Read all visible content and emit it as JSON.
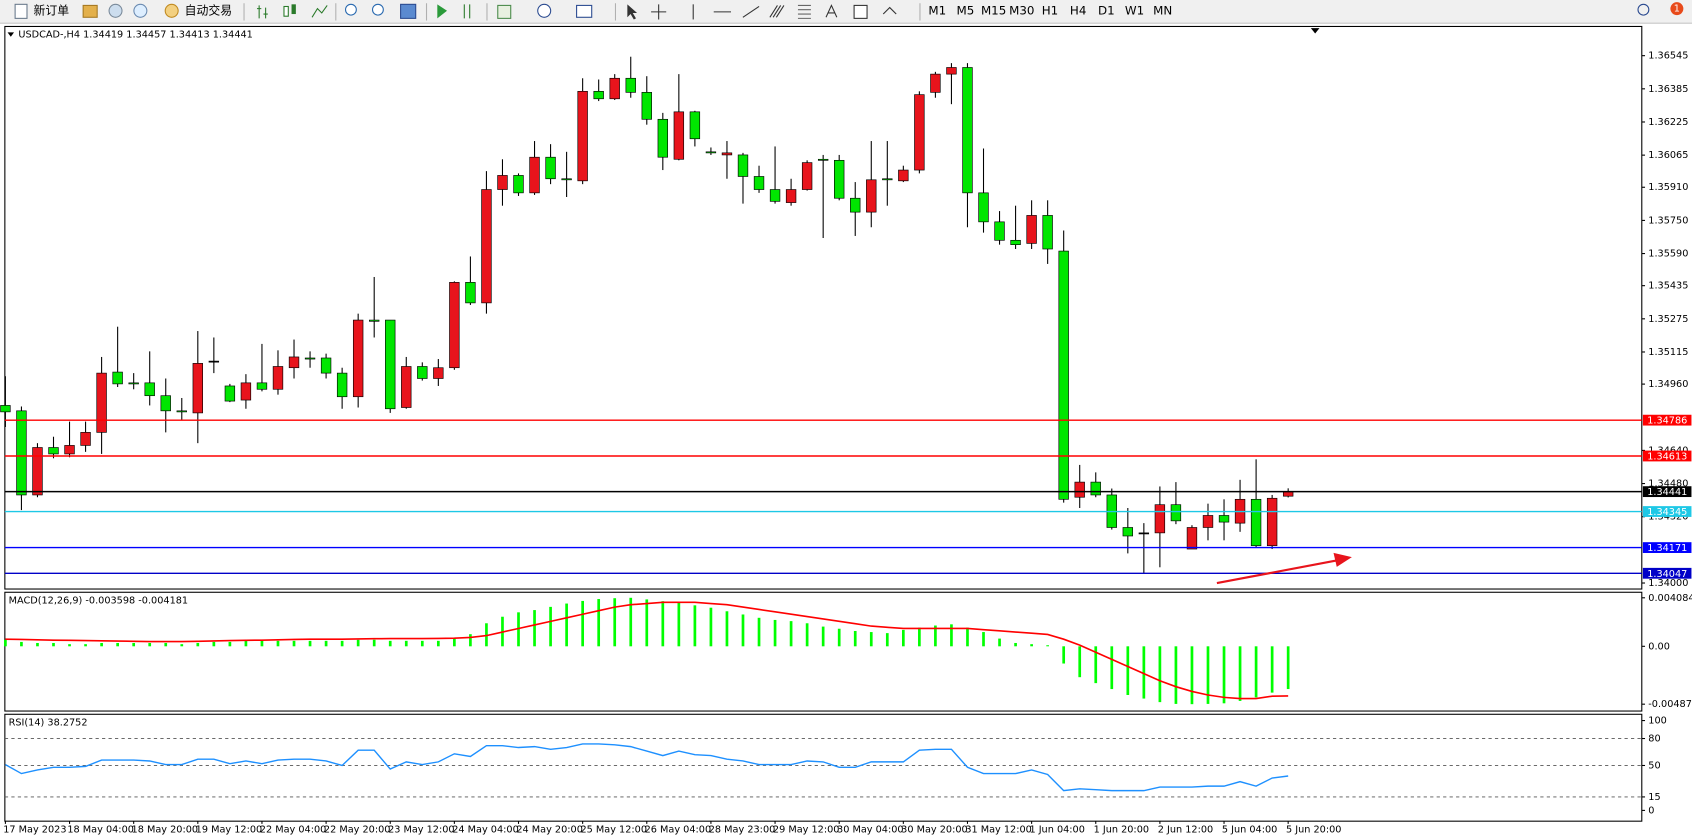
{
  "toolbar": {
    "new_order": "新订单",
    "auto_trading": "自动交易",
    "timeframes": [
      "M1",
      "M5",
      "M15",
      "M30",
      "H1",
      "H4",
      "D1",
      "W1",
      "MN"
    ],
    "notifications": "1"
  },
  "chart_data": [
    {
      "type": "candlestick",
      "title": "USDCAD-,H4  1.34419 1.34457 1.34413 1.34441",
      "up_color": "#e8141c",
      "down_color": "#00e600",
      "x": [
        "17 May 2023",
        null,
        null,
        null,
        "18 May 04:00",
        null,
        null,
        null,
        "18 May 20:00",
        null,
        null,
        null,
        "19 May 12:00",
        null,
        null,
        null,
        "22 May 04:00",
        null,
        null,
        null,
        "22 May 20:00",
        null,
        null,
        null,
        "23 May 12:00",
        null,
        null,
        null,
        "24 May 04:00",
        null,
        null,
        null,
        "24 May 20:00",
        null,
        null,
        null,
        "25 May 12:00",
        null,
        null,
        null,
        "26 May 04:00",
        null,
        null,
        null,
        "28 May 23:00",
        null,
        null,
        null,
        "29 May 12:00",
        null,
        null,
        null,
        "30 May 04:00",
        null,
        null,
        null,
        "30 May 20:00",
        null,
        null,
        null,
        "31 May 12:00",
        null,
        null,
        null,
        "1 Jun 04:00",
        null,
        null,
        null,
        "1 Jun 20:00",
        null,
        null,
        null,
        "2 Jun 12:00",
        null,
        null,
        null,
        "5 Jun 04:00",
        null,
        null,
        null,
        "5 Jun 20:00"
      ],
      "open": [
        1.34857,
        1.34831,
        1.34425,
        1.34654,
        1.34623,
        1.34664,
        1.34727,
        1.35018,
        1.34966,
        1.34966,
        1.34904,
        1.34831,
        1.34821,
        1.35071,
        1.34951,
        1.34883,
        1.34966,
        1.34935,
        1.35039,
        1.35086,
        1.35086,
        1.35013,
        1.34899,
        1.35269,
        1.35269,
        1.34847,
        1.35045,
        1.34987,
        1.35039,
        1.35451,
        1.35352,
        1.35899,
        1.35967,
        1.35883,
        1.36055,
        1.35951,
        1.35941,
        1.36373,
        1.36337,
        1.36436,
        1.36368,
        1.36238,
        1.36045,
        1.36274,
        1.36081,
        1.36066,
        1.36066,
        1.35962,
        1.35899,
        1.35836,
        1.35899,
        1.36045,
        1.3604,
        1.35857,
        1.3579,
        1.35951,
        1.35941,
        1.35993,
        1.36368,
        1.36456,
        1.36488,
        1.35883,
        1.35743,
        1.35654,
        1.35639,
        1.35774,
        1.35602,
        1.34414,
        1.34487,
        1.34425,
        1.34268,
        1.34242,
        1.34242,
        1.34378,
        1.34164,
        1.34268,
        1.34326,
        1.34289,
        1.34404,
        1.3418,
        1.34419
      ],
      "high": [
        1.34998,
        1.34852,
        1.34675,
        1.34706,
        1.34779,
        1.34779,
        1.35091,
        1.35237,
        1.35013,
        1.35118,
        1.34987,
        1.34893,
        1.35216,
        1.35185,
        1.34961,
        1.35008,
        1.35154,
        1.35123,
        1.35175,
        1.35118,
        1.35107,
        1.35039,
        1.353,
        1.35477,
        1.35269,
        1.35091,
        1.35065,
        1.35081,
        1.35456,
        1.35576,
        1.35988,
        1.36045,
        1.35977,
        1.36133,
        1.36118,
        1.36081,
        1.36436,
        1.3643,
        1.36456,
        1.3654,
        1.36446,
        1.36269,
        1.36456,
        1.36279,
        1.36102,
        1.36133,
        1.36076,
        1.36014,
        1.36107,
        1.35951,
        1.3604,
        1.36066,
        1.36066,
        1.35935,
        1.36133,
        1.36133,
        1.36014,
        1.36373,
        1.36467,
        1.36509,
        1.36509,
        1.36097,
        1.35795,
        1.35821,
        1.35847,
        1.35847,
        1.35701,
        1.3457,
        1.34534,
        1.34456,
        1.34362,
        1.34289,
        1.34466,
        1.34487,
        1.34279,
        1.34383,
        1.34404,
        1.34498,
        1.34597,
        1.34425,
        1.34457
      ],
      "low": [
        1.34753,
        1.34352,
        1.34414,
        1.34602,
        1.34607,
        1.34633,
        1.34623,
        1.34946,
        1.34935,
        1.34857,
        1.34727,
        1.34789,
        1.34675,
        1.35013,
        1.34873,
        1.34841,
        1.34925,
        1.34909,
        1.34987,
        1.35039,
        1.34987,
        1.34841,
        1.34847,
        1.35185,
        1.34821,
        1.34841,
        1.34977,
        1.34951,
        1.35029,
        1.35342,
        1.353,
        1.35821,
        1.35868,
        1.35873,
        1.35925,
        1.35863,
        1.35925,
        1.36326,
        1.36331,
        1.36342,
        1.36212,
        1.35993,
        1.3604,
        1.36107,
        1.36066,
        1.35951,
        1.35831,
        1.35883,
        1.35831,
        1.35821,
        1.35894,
        1.35665,
        1.35847,
        1.35675,
        1.35717,
        1.35821,
        1.35935,
        1.35977,
        1.36342,
        1.36311,
        1.35717,
        1.35691,
        1.35633,
        1.35612,
        1.35612,
        1.3554,
        1.34388,
        1.34362,
        1.34414,
        1.34258,
        1.34143,
        1.34044,
        1.34076,
        1.34284,
        1.34164,
        1.34206,
        1.34206,
        1.34247,
        1.34169,
        1.34164,
        1.34413
      ],
      "close": [
        1.34826,
        1.34425,
        1.34654,
        1.34623,
        1.34664,
        1.34727,
        1.35013,
        1.34961,
        1.34961,
        1.34904,
        1.34831,
        1.34826,
        1.3506,
        1.35071,
        1.34878,
        1.34966,
        1.34935,
        1.35045,
        1.35091,
        1.35081,
        1.35013,
        1.34899,
        1.35269,
        1.35263,
        1.34841,
        1.35045,
        1.34987,
        1.35039,
        1.35451,
        1.35352,
        1.35899,
        1.35967,
        1.35883,
        1.36055,
        1.35951,
        1.35946,
        1.36373,
        1.36337,
        1.36436,
        1.36368,
        1.36238,
        1.36055,
        1.36274,
        1.36144,
        1.36076,
        1.36076,
        1.35962,
        1.35899,
        1.35842,
        1.35899,
        1.36029,
        1.3604,
        1.35857,
        1.3579,
        1.35946,
        1.35946,
        1.35993,
        1.36357,
        1.36456,
        1.36488,
        1.35883,
        1.35743,
        1.35654,
        1.35633,
        1.35774,
        1.35612,
        1.34404,
        1.34487,
        1.34425,
        1.34268,
        1.34227,
        1.34242,
        1.34378,
        1.343,
        1.34268,
        1.34326,
        1.34294,
        1.34404,
        1.3418,
        1.34409,
        1.34441
      ],
      "ylim": [
        1.33971,
        1.36686
      ],
      "yticks": [
        1.36545,
        1.36385,
        1.36225,
        1.36065,
        {
          "value": 1.3591,
          "label": "1.35910"
        },
        {
          "value": 1.3575,
          "label": "1.35750"
        },
        {
          "value": 1.3559,
          "label": "1.35590"
        },
        1.35435,
        1.35275,
        1.35115,
        {
          "value": 1.3496,
          "label": "1.34960"
        },
        {
          "value": 1.3464,
          "label": "1.34640"
        },
        {
          "value": 1.3448,
          "label": "1.34480"
        },
        {
          "value": 1.3432,
          "label": "1.34320"
        },
        {
          "value": 1.34,
          "label": "1.34000"
        }
      ],
      "hlines": [
        {
          "value": 1.34786,
          "color": "#ff0000"
        },
        {
          "value": 1.34613,
          "color": "#ff0000"
        },
        {
          "value": 1.34441,
          "color": "#000000"
        },
        {
          "value": 1.34345,
          "color": "#1ec8e6"
        },
        {
          "value": 1.34171,
          "color": "#0000ff"
        },
        {
          "value": 1.34047,
          "color": "#0000c8"
        }
      ]
    },
    {
      "type": "macd",
      "title": "MACD(12,26,9) -0.003598 -0.004181",
      "color": "#00ff00",
      "signal_color": "#ff0000",
      "values": [
        0.00055,
        0.00037,
        0.00028,
        0.00028,
        0.00018,
        0.00018,
        0.00028,
        0.00028,
        0.00028,
        0.00028,
        0.00028,
        0.00018,
        0.00028,
        0.00037,
        0.00037,
        0.00046,
        0.00046,
        0.00046,
        0.00046,
        0.00046,
        0.00046,
        0.00046,
        0.00055,
        0.00055,
        0.00046,
        0.00046,
        0.00046,
        0.00046,
        0.00065,
        0.00102,
        0.00194,
        0.00249,
        0.00286,
        0.00305,
        0.00332,
        0.0036,
        0.00382,
        0.00398,
        0.00405,
        0.004084,
        0.00395,
        0.0038,
        0.00365,
        0.00345,
        0.00325,
        0.00295,
        0.00268,
        0.0024,
        0.00222,
        0.00212,
        0.00194,
        0.00166,
        0.00148,
        0.00129,
        0.0012,
        0.00111,
        0.00138,
        0.00157,
        0.00175,
        0.00185,
        0.00157,
        0.0012,
        0.00065,
        0.00028,
        0.00018,
        9e-05,
        -0.00145,
        -0.0026,
        -0.0031,
        -0.0036,
        -0.0041,
        -0.0044,
        -0.0047,
        -0.00485,
        -0.004872,
        -0.00485,
        -0.0048,
        -0.0046,
        -0.0043,
        -0.0039,
        -0.003598
      ],
      "signal": [
        0.0006,
        0.00058,
        0.00055,
        0.00052,
        0.0005,
        0.00048,
        0.00046,
        0.00044,
        0.00042,
        0.0004,
        0.0004,
        0.0004,
        0.00042,
        0.00045,
        0.00048,
        0.0005,
        0.00052,
        0.00055,
        0.00058,
        0.0006,
        0.0006,
        0.0006,
        0.00062,
        0.00064,
        0.00065,
        0.00065,
        0.00065,
        0.00066,
        0.00068,
        0.00075,
        0.0009,
        0.0012,
        0.0015,
        0.0018,
        0.0021,
        0.0024,
        0.0027,
        0.003,
        0.0033,
        0.0035,
        0.0036,
        0.0037,
        0.0037,
        0.0037,
        0.0036,
        0.0035,
        0.0033,
        0.0031,
        0.0029,
        0.0027,
        0.0025,
        0.0023,
        0.0021,
        0.0019,
        0.0017,
        0.0016,
        0.0015,
        0.0015,
        0.0015,
        0.0015,
        0.0015,
        0.0014,
        0.0013,
        0.0012,
        0.0011,
        0.001,
        0.0006,
        0.0001,
        -0.0005,
        -0.0011,
        -0.0017,
        -0.0023,
        -0.0029,
        -0.0034,
        -0.0038,
        -0.0041,
        -0.0043,
        -0.0044,
        -0.0044,
        -0.0042,
        -0.004181
      ],
      "ylim": [
        -0.00545,
        0.00455
      ],
      "yticks": [
        0.004084,
        {
          "value": 0,
          "label": "0.00"
        },
        -0.004872
      ]
    },
    {
      "type": "rsi",
      "title": "RSI(14) 38.2752",
      "color": "#1e90ff",
      "values": [
        51,
        41,
        45,
        48,
        48,
        49,
        56,
        56,
        56,
        55,
        51,
        51,
        57,
        57,
        52,
        55,
        52,
        56,
        57,
        57,
        55,
        50,
        67,
        67,
        46,
        54,
        51,
        54,
        63,
        60,
        72,
        72,
        70,
        71,
        68,
        70,
        74,
        74,
        73,
        71,
        66,
        61,
        66,
        62,
        61,
        57,
        55,
        51,
        51,
        51,
        55,
        54,
        48,
        48,
        54,
        54,
        54,
        67,
        68,
        68,
        48,
        41,
        41,
        41,
        45,
        40,
        22,
        24,
        23,
        22,
        22,
        22,
        26,
        26,
        26,
        27,
        27,
        32,
        27,
        36,
        38.2752
      ],
      "ylim": [
        -12,
        107
      ],
      "yticks": [
        100,
        80,
        50,
        15,
        0
      ],
      "levels": [
        80,
        50,
        15
      ]
    }
  ]
}
